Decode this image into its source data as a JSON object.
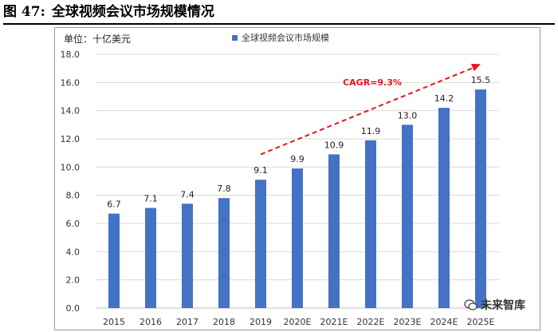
{
  "figure": {
    "number": "图 47:",
    "title": "全球视频会议市场规模情况"
  },
  "unit_label": "单位：十亿美元",
  "watermark": "未来智库",
  "colors": {
    "bar": "#4472c4",
    "trend": "#e8141e",
    "grid": "#d9d9d9",
    "axis": "#bfbfbf"
  },
  "chart_data": {
    "type": "bar",
    "title": "全球视频会议市场规模",
    "xlabel": "",
    "ylabel": "",
    "categories": [
      "2015",
      "2016",
      "2017",
      "2018",
      "2019",
      "2020E",
      "2021E",
      "2022E",
      "2023E",
      "2024E",
      "2025E"
    ],
    "series": [
      {
        "name": "全球视频会议市场规模",
        "values": [
          6.7,
          7.1,
          7.4,
          7.8,
          9.1,
          9.9,
          10.9,
          11.9,
          13.0,
          14.2,
          15.5
        ]
      }
    ],
    "value_labels": [
      "6.7",
      "7.1",
      "7.4",
      "7.8",
      "9.1",
      "9.9",
      "10.9",
      "11.9",
      "13.0",
      "14.2",
      "15.5"
    ],
    "ylim": [
      0,
      18
    ],
    "yticks": [
      "0.0",
      "2.0",
      "4.0",
      "6.0",
      "8.0",
      "10.0",
      "12.0",
      "14.0",
      "16.0",
      "18.0"
    ],
    "grid": true,
    "legend": "top-center",
    "annotation": {
      "text": "CAGR=9.3%",
      "from_category": "2019",
      "to_category": "2025E",
      "from_value": 10.9,
      "to_value": 17.3
    }
  }
}
